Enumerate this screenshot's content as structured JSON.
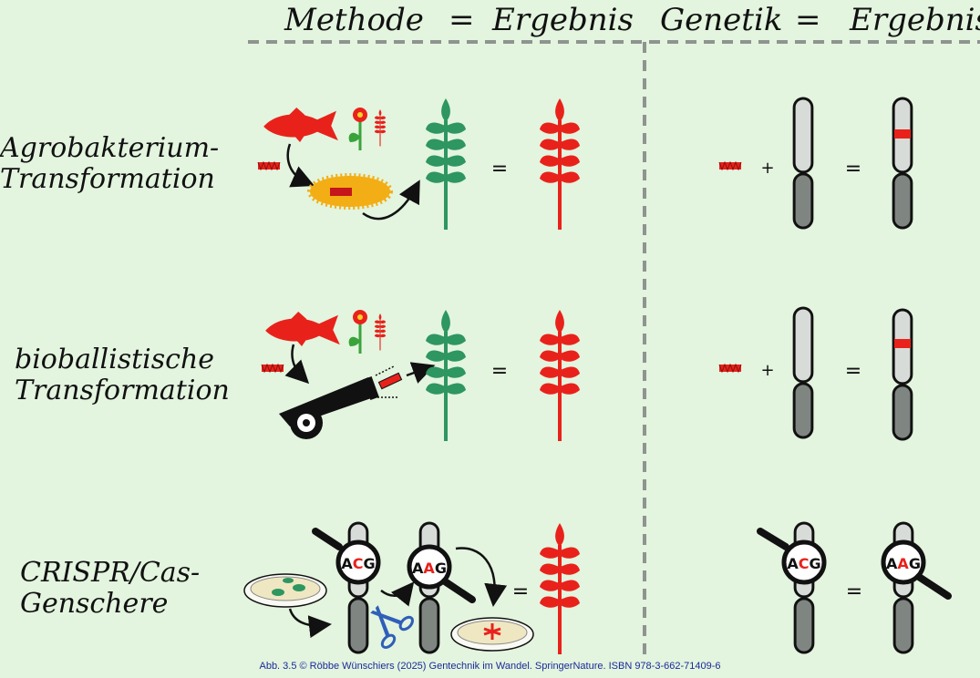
{
  "header": {
    "methode": "Methode",
    "equals_1": "=",
    "ergebnis_1": "Ergebnis",
    "genetik": "Genetik",
    "equals_2": "=",
    "ergebnis_2": "Ergebnis"
  },
  "rows": [
    {
      "line1": "Agrobakterium-",
      "line2": "Transformation"
    },
    {
      "line1": "bioballistische",
      "line2": "Transformation"
    },
    {
      "line1": "CRISPR/Cas-",
      "line2": "Genschere"
    }
  ],
  "symbols": {
    "equals": "=",
    "plus": "+"
  },
  "codons": {
    "original": {
      "b1": "A",
      "b2": "C",
      "b3": "G"
    },
    "edited": {
      "b1": "A",
      "b2": "A",
      "b3": "G"
    }
  },
  "colors": {
    "background": "#e3f4df",
    "transgene_red": "#e8221b",
    "native_green": "#2e9660",
    "chromosome_light": "#d8dcd8",
    "chromosome_dark": "#7f8580",
    "bacterium_orange": "#f2ae14",
    "scissors_blue": "#2f5fb8",
    "divider_gray": "#8e948f"
  },
  "icons": [
    "fish-icon",
    "flower-icon",
    "wheat-icon",
    "bacterium-icon",
    "cannon-icon",
    "petri-dish-icon",
    "magnifier-icon",
    "scissors-icon",
    "chromosome-icon",
    "dna-fragment-icon"
  ],
  "footer": {
    "citation": "Abb. 3.5 © Röbbe Wünschiers (2025) Gentechnik im Wandel. SpringerNature. ISBN 978-3-662-71409-6"
  }
}
